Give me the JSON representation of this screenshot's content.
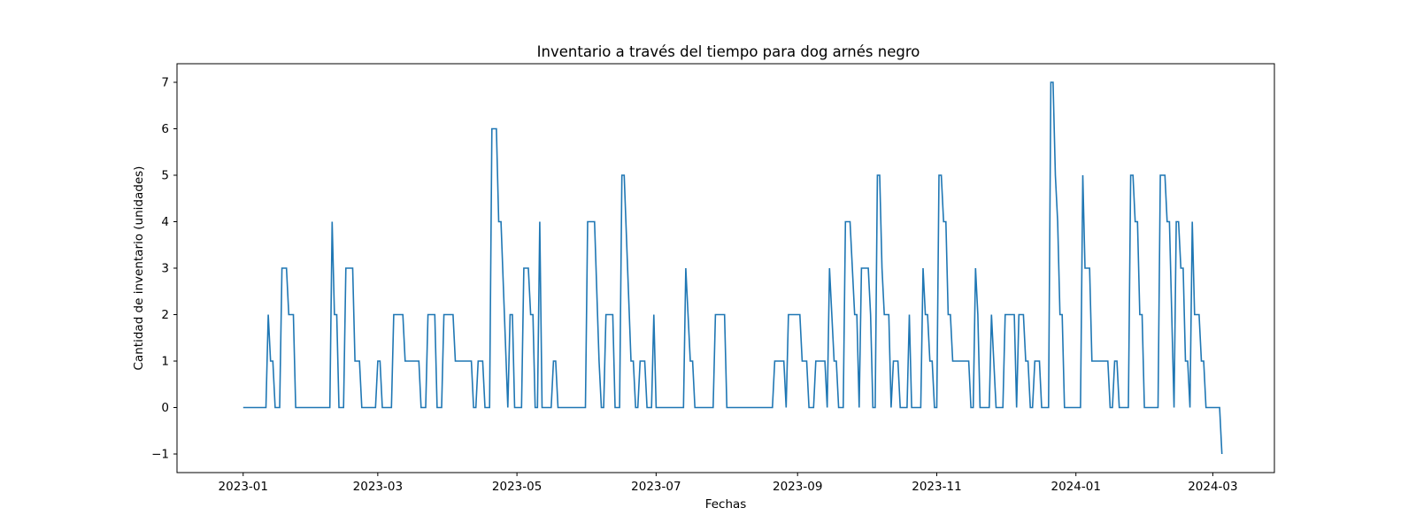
{
  "chart_data": {
    "type": "line",
    "title": "Inventario a través del tiempo para dog arnés negro",
    "xlabel": "Fechas",
    "ylabel": "Cantidad de inventario (unidades)",
    "xlim": [
      "2022-12-03",
      "2024-03-28"
    ],
    "ylim": [
      -1.4,
      7.4
    ],
    "x_ticks": [
      "2023-01",
      "2023-03",
      "2023-05",
      "2023-07",
      "2023-09",
      "2023-11",
      "2024-01",
      "2024-03"
    ],
    "y_ticks": [
      -1,
      0,
      1,
      2,
      3,
      4,
      5,
      6,
      7
    ],
    "grid": false,
    "color": "#1f77b4",
    "series": [
      {
        "name": "",
        "points": [
          [
            "2023-01-01",
            0
          ],
          [
            "2023-01-11",
            0
          ],
          [
            "2023-01-12",
            2
          ],
          [
            "2023-01-13",
            1
          ],
          [
            "2023-01-14",
            1
          ],
          [
            "2023-01-15",
            0
          ],
          [
            "2023-01-17",
            0
          ],
          [
            "2023-01-18",
            3
          ],
          [
            "2023-01-20",
            3
          ],
          [
            "2023-01-21",
            2
          ],
          [
            "2023-01-23",
            2
          ],
          [
            "2023-01-24",
            0
          ],
          [
            "2023-02-08",
            0
          ],
          [
            "2023-02-09",
            4
          ],
          [
            "2023-02-10",
            2
          ],
          [
            "2023-02-11",
            2
          ],
          [
            "2023-02-12",
            0
          ],
          [
            "2023-02-14",
            0
          ],
          [
            "2023-02-15",
            3
          ],
          [
            "2023-02-18",
            3
          ],
          [
            "2023-02-19",
            1
          ],
          [
            "2023-02-21",
            1
          ],
          [
            "2023-02-22",
            0
          ],
          [
            "2023-02-28",
            0
          ],
          [
            "2023-03-01",
            1
          ],
          [
            "2023-03-02",
            1
          ],
          [
            "2023-03-03",
            0
          ],
          [
            "2023-03-07",
            0
          ],
          [
            "2023-03-08",
            2
          ],
          [
            "2023-03-12",
            2
          ],
          [
            "2023-03-13",
            1
          ],
          [
            "2023-03-19",
            1
          ],
          [
            "2023-03-20",
            0
          ],
          [
            "2023-03-22",
            0
          ],
          [
            "2023-03-23",
            2
          ],
          [
            "2023-03-26",
            2
          ],
          [
            "2023-03-27",
            0
          ],
          [
            "2023-03-29",
            0
          ],
          [
            "2023-03-30",
            2
          ],
          [
            "2023-04-03",
            2
          ],
          [
            "2023-04-04",
            1
          ],
          [
            "2023-04-11",
            1
          ],
          [
            "2023-04-12",
            0
          ],
          [
            "2023-04-13",
            0
          ],
          [
            "2023-04-14",
            1
          ],
          [
            "2023-04-16",
            1
          ],
          [
            "2023-04-17",
            0
          ],
          [
            "2023-04-19",
            0
          ],
          [
            "2023-04-20",
            6
          ],
          [
            "2023-04-22",
            6
          ],
          [
            "2023-04-23",
            4
          ],
          [
            "2023-04-24",
            4
          ],
          [
            "2023-04-27",
            0
          ],
          [
            "2023-04-28",
            2
          ],
          [
            "2023-04-29",
            2
          ],
          [
            "2023-04-30",
            0
          ],
          [
            "2023-05-03",
            0
          ],
          [
            "2023-05-04",
            3
          ],
          [
            "2023-05-06",
            3
          ],
          [
            "2023-05-07",
            2
          ],
          [
            "2023-05-08",
            2
          ],
          [
            "2023-05-09",
            0
          ],
          [
            "2023-05-10",
            0
          ],
          [
            "2023-05-11",
            4
          ],
          [
            "2023-05-12",
            0
          ],
          [
            "2023-05-16",
            0
          ],
          [
            "2023-05-17",
            1
          ],
          [
            "2023-05-18",
            1
          ],
          [
            "2023-05-19",
            0
          ],
          [
            "2023-05-31",
            0
          ],
          [
            "2023-06-01",
            4
          ],
          [
            "2023-06-04",
            4
          ],
          [
            "2023-06-06",
            1
          ],
          [
            "2023-06-07",
            0
          ],
          [
            "2023-06-08",
            0
          ],
          [
            "2023-06-09",
            2
          ],
          [
            "2023-06-12",
            2
          ],
          [
            "2023-06-13",
            0
          ],
          [
            "2023-06-15",
            0
          ],
          [
            "2023-06-16",
            5
          ],
          [
            "2023-06-17",
            5
          ],
          [
            "2023-06-20",
            1
          ],
          [
            "2023-06-21",
            1
          ],
          [
            "2023-06-22",
            0
          ],
          [
            "2023-06-23",
            0
          ],
          [
            "2023-06-24",
            1
          ],
          [
            "2023-06-26",
            1
          ],
          [
            "2023-06-27",
            0
          ],
          [
            "2023-06-29",
            0
          ],
          [
            "2023-06-30",
            2
          ],
          [
            "2023-07-01",
            0
          ],
          [
            "2023-07-13",
            0
          ],
          [
            "2023-07-14",
            3
          ],
          [
            "2023-07-16",
            1
          ],
          [
            "2023-07-17",
            1
          ],
          [
            "2023-07-18",
            0
          ],
          [
            "2023-07-26",
            0
          ],
          [
            "2023-07-27",
            2
          ],
          [
            "2023-07-31",
            2
          ],
          [
            "2023-08-01",
            0
          ],
          [
            "2023-08-21",
            0
          ],
          [
            "2023-08-22",
            1
          ],
          [
            "2023-08-26",
            1
          ],
          [
            "2023-08-27",
            0
          ],
          [
            "2023-08-28",
            2
          ],
          [
            "2023-09-02",
            2
          ],
          [
            "2023-09-03",
            1
          ],
          [
            "2023-09-05",
            1
          ],
          [
            "2023-09-06",
            0
          ],
          [
            "2023-09-08",
            0
          ],
          [
            "2023-09-09",
            1
          ],
          [
            "2023-09-13",
            1
          ],
          [
            "2023-09-14",
            0
          ],
          [
            "2023-09-15",
            3
          ],
          [
            "2023-09-17",
            1
          ],
          [
            "2023-09-18",
            1
          ],
          [
            "2023-09-19",
            0
          ],
          [
            "2023-09-21",
            0
          ],
          [
            "2023-09-22",
            4
          ],
          [
            "2023-09-24",
            4
          ],
          [
            "2023-09-26",
            2
          ],
          [
            "2023-09-27",
            2
          ],
          [
            "2023-09-28",
            0
          ],
          [
            "2023-09-29",
            3
          ],
          [
            "2023-10-02",
            3
          ],
          [
            "2023-10-03",
            2
          ],
          [
            "2023-10-04",
            0
          ],
          [
            "2023-10-05",
            0
          ],
          [
            "2023-10-06",
            5
          ],
          [
            "2023-10-07",
            5
          ],
          [
            "2023-10-08",
            3
          ],
          [
            "2023-10-09",
            2
          ],
          [
            "2023-10-11",
            2
          ],
          [
            "2023-10-12",
            0
          ],
          [
            "2023-10-13",
            1
          ],
          [
            "2023-10-15",
            1
          ],
          [
            "2023-10-16",
            0
          ],
          [
            "2023-10-19",
            0
          ],
          [
            "2023-10-20",
            2
          ],
          [
            "2023-10-21",
            0
          ],
          [
            "2023-10-25",
            0
          ],
          [
            "2023-10-26",
            3
          ],
          [
            "2023-10-27",
            2
          ],
          [
            "2023-10-28",
            2
          ],
          [
            "2023-10-29",
            1
          ],
          [
            "2023-10-30",
            1
          ],
          [
            "2023-10-31",
            0
          ],
          [
            "2023-11-01",
            0
          ],
          [
            "2023-11-02",
            5
          ],
          [
            "2023-11-03",
            5
          ],
          [
            "2023-11-04",
            4
          ],
          [
            "2023-11-05",
            4
          ],
          [
            "2023-11-06",
            2
          ],
          [
            "2023-11-07",
            2
          ],
          [
            "2023-11-08",
            1
          ],
          [
            "2023-11-15",
            1
          ],
          [
            "2023-11-16",
            0
          ],
          [
            "2023-11-17",
            0
          ],
          [
            "2023-11-18",
            3
          ],
          [
            "2023-11-19",
            2
          ],
          [
            "2023-11-20",
            0
          ],
          [
            "2023-11-24",
            0
          ],
          [
            "2023-11-25",
            2
          ],
          [
            "2023-11-26",
            1
          ],
          [
            "2023-11-27",
            0
          ],
          [
            "2023-11-30",
            0
          ],
          [
            "2023-12-01",
            2
          ],
          [
            "2023-12-05",
            2
          ],
          [
            "2023-12-06",
            0
          ],
          [
            "2023-12-07",
            2
          ],
          [
            "2023-12-09",
            2
          ],
          [
            "2023-12-10",
            1
          ],
          [
            "2023-12-11",
            1
          ],
          [
            "2023-12-12",
            0
          ],
          [
            "2023-12-13",
            0
          ],
          [
            "2023-12-14",
            1
          ],
          [
            "2023-12-16",
            1
          ],
          [
            "2023-12-17",
            0
          ],
          [
            "2023-12-20",
            0
          ],
          [
            "2023-12-21",
            7
          ],
          [
            "2023-12-22",
            7
          ],
          [
            "2023-12-23",
            5
          ],
          [
            "2023-12-24",
            4
          ],
          [
            "2023-12-25",
            2
          ],
          [
            "2023-12-26",
            2
          ],
          [
            "2023-12-27",
            0
          ],
          [
            "2024-01-03",
            0
          ],
          [
            "2024-01-04",
            5
          ],
          [
            "2024-01-05",
            3
          ],
          [
            "2024-01-07",
            3
          ],
          [
            "2024-01-08",
            1
          ],
          [
            "2024-01-15",
            1
          ],
          [
            "2024-01-16",
            0
          ],
          [
            "2024-01-17",
            0
          ],
          [
            "2024-01-18",
            1
          ],
          [
            "2024-01-19",
            1
          ],
          [
            "2024-01-20",
            0
          ],
          [
            "2024-01-24",
            0
          ],
          [
            "2024-01-25",
            5
          ],
          [
            "2024-01-26",
            5
          ],
          [
            "2024-01-27",
            4
          ],
          [
            "2024-01-28",
            4
          ],
          [
            "2024-01-29",
            2
          ],
          [
            "2024-01-30",
            2
          ],
          [
            "2024-01-31",
            0
          ],
          [
            "2024-02-06",
            0
          ],
          [
            "2024-02-07",
            5
          ],
          [
            "2024-02-09",
            5
          ],
          [
            "2024-02-10",
            4
          ],
          [
            "2024-02-11",
            4
          ],
          [
            "2024-02-13",
            0
          ],
          [
            "2024-02-14",
            4
          ],
          [
            "2024-02-15",
            4
          ],
          [
            "2024-02-16",
            3
          ],
          [
            "2024-02-17",
            3
          ],
          [
            "2024-02-18",
            1
          ],
          [
            "2024-02-19",
            1
          ],
          [
            "2024-02-20",
            0
          ],
          [
            "2024-02-21",
            4
          ],
          [
            "2024-02-22",
            2
          ],
          [
            "2024-02-24",
            2
          ],
          [
            "2024-02-25",
            1
          ],
          [
            "2024-02-26",
            1
          ],
          [
            "2024-02-27",
            0
          ],
          [
            "2024-03-04",
            0
          ],
          [
            "2024-03-05",
            -1
          ]
        ]
      }
    ]
  }
}
